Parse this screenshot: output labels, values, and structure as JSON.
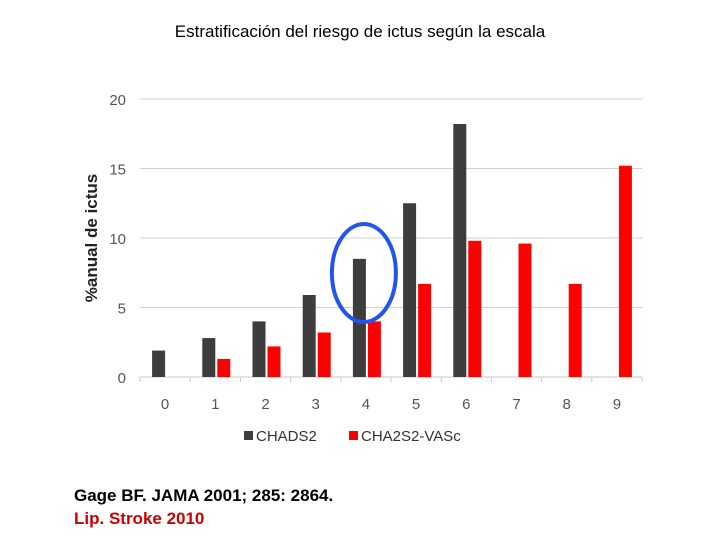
{
  "title": "Estratificación del riesgo de ictus según la escala",
  "references": {
    "line1": "Gage BF. JAMA 2001; 285: 2864.",
    "line2": "Lip. Stroke 2010"
  },
  "colors": {
    "series1": "#3d3d3d",
    "series2": "#ff0000",
    "highlight_circle": "#2255ee",
    "grid": "#d0d0d0",
    "tick_text": "#555555"
  },
  "annotation": {
    "type": "circle",
    "category": "4",
    "color": "#2255ee"
  },
  "chart_data": {
    "type": "bar",
    "ylabel": "%anual de ictus",
    "xlabel": "",
    "ylim": [
      0,
      20
    ],
    "yticks": [
      0,
      5,
      10,
      15,
      20
    ],
    "grid": true,
    "legend_position": "bottom",
    "categories": [
      "0",
      "1",
      "2",
      "3",
      "4",
      "5",
      "6",
      "7",
      "8",
      "9"
    ],
    "series": [
      {
        "name": "CHADS2",
        "values": [
          1.9,
          2.8,
          4.0,
          5.9,
          8.5,
          12.5,
          18.2,
          null,
          null,
          null
        ]
      },
      {
        "name": "CHA2S2-VASc",
        "values": [
          null,
          1.3,
          2.2,
          3.2,
          4.0,
          6.7,
          9.8,
          9.6,
          6.7,
          15.2
        ]
      }
    ]
  }
}
